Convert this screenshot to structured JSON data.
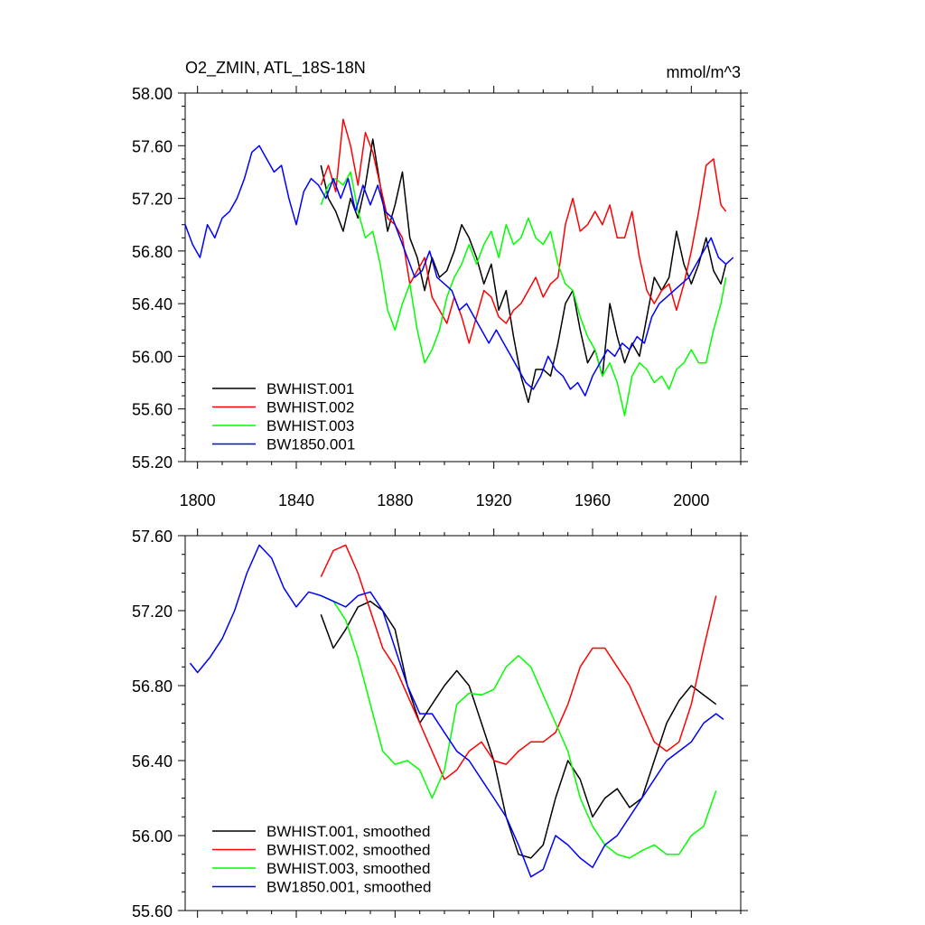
{
  "chart_data": [
    {
      "type": "line",
      "title": "O2_ZMIN, ATL_18S-18N",
      "units": "mmol/m^3",
      "xlabel": "",
      "ylabel": "",
      "xlim": [
        1795,
        2020
      ],
      "ylim": [
        55.2,
        58.0
      ],
      "xticks": [
        1800,
        1840,
        1880,
        1920,
        1960,
        2000
      ],
      "yticks": [
        55.2,
        55.6,
        56.0,
        56.4,
        56.8,
        57.2,
        57.6,
        58.0
      ],
      "ytick_labels": [
        "55.20",
        "55.60",
        "56.00",
        "56.40",
        "56.80",
        "57.20",
        "57.60",
        "58.00"
      ],
      "legend_position": "bottom-left",
      "series": [
        {
          "name": "BWHIST.001",
          "color": "#000000",
          "x": [
            1850,
            1853,
            1856,
            1859,
            1862,
            1865,
            1868,
            1871,
            1874,
            1877,
            1880,
            1883,
            1886,
            1889,
            1892,
            1895,
            1898,
            1901,
            1904,
            1907,
            1910,
            1913,
            1916,
            1919,
            1922,
            1925,
            1928,
            1931,
            1934,
            1937,
            1940,
            1943,
            1946,
            1949,
            1952,
            1955,
            1958,
            1961,
            1964,
            1967,
            1970,
            1973,
            1976,
            1979,
            1982,
            1985,
            1988,
            1991,
            1994,
            1997,
            2000,
            2003,
            2006,
            2009,
            2012,
            2014
          ],
          "y": [
            57.45,
            57.2,
            57.1,
            56.95,
            57.2,
            57.05,
            57.3,
            57.65,
            57.3,
            56.95,
            57.15,
            57.4,
            56.9,
            56.75,
            56.5,
            56.75,
            56.6,
            56.65,
            56.8,
            57.0,
            56.9,
            56.75,
            56.55,
            56.7,
            56.35,
            56.5,
            56.15,
            55.85,
            55.65,
            55.9,
            55.9,
            55.85,
            56.1,
            56.4,
            56.5,
            56.2,
            55.95,
            56.05,
            55.85,
            56.4,
            56.15,
            55.95,
            56.1,
            56.0,
            56.3,
            56.6,
            56.5,
            56.6,
            56.95,
            56.7,
            56.55,
            56.7,
            56.9,
            56.65,
            56.55,
            56.7
          ]
        },
        {
          "name": "BWHIST.002",
          "color": "#ff0000",
          "x": [
            1850,
            1853,
            1856,
            1859,
            1862,
            1865,
            1868,
            1871,
            1874,
            1877,
            1880,
            1883,
            1886,
            1889,
            1892,
            1895,
            1898,
            1901,
            1904,
            1907,
            1910,
            1913,
            1916,
            1919,
            1922,
            1925,
            1928,
            1931,
            1934,
            1937,
            1940,
            1943,
            1946,
            1949,
            1952,
            1955,
            1958,
            1961,
            1964,
            1967,
            1970,
            1973,
            1976,
            1979,
            1982,
            1985,
            1988,
            1991,
            1994,
            1997,
            2000,
            2003,
            2006,
            2009,
            2012,
            2014
          ],
          "y": [
            57.3,
            57.45,
            57.25,
            57.8,
            57.6,
            57.3,
            57.7,
            57.55,
            57.3,
            57.05,
            57.0,
            56.9,
            56.55,
            56.65,
            56.75,
            56.45,
            56.35,
            56.25,
            56.45,
            56.3,
            56.1,
            56.3,
            56.5,
            56.45,
            56.3,
            56.25,
            56.35,
            56.4,
            56.5,
            56.6,
            56.45,
            56.55,
            56.6,
            57.0,
            57.2,
            56.95,
            57.0,
            57.1,
            57.0,
            57.15,
            56.9,
            56.9,
            57.1,
            56.75,
            56.5,
            56.4,
            56.5,
            56.55,
            56.35,
            56.55,
            56.8,
            57.1,
            57.45,
            57.5,
            57.15,
            57.1
          ]
        },
        {
          "name": "BWHIST.003",
          "color": "#00ff00",
          "x": [
            1850,
            1853,
            1856,
            1859,
            1862,
            1865,
            1868,
            1871,
            1874,
            1877,
            1880,
            1883,
            1886,
            1889,
            1892,
            1895,
            1898,
            1901,
            1904,
            1907,
            1910,
            1913,
            1916,
            1919,
            1922,
            1925,
            1928,
            1931,
            1934,
            1937,
            1940,
            1943,
            1946,
            1949,
            1952,
            1955,
            1958,
            1961,
            1964,
            1967,
            1970,
            1973,
            1976,
            1979,
            1982,
            1985,
            1988,
            1991,
            1994,
            1997,
            2000,
            2003,
            2006,
            2009,
            2012,
            2014
          ],
          "y": [
            57.15,
            57.3,
            57.35,
            57.3,
            57.4,
            57.1,
            56.9,
            56.95,
            56.7,
            56.35,
            56.2,
            56.4,
            56.55,
            56.2,
            55.95,
            56.05,
            56.2,
            56.45,
            56.6,
            56.7,
            56.85,
            56.7,
            56.85,
            56.95,
            56.75,
            57.0,
            56.85,
            56.9,
            57.05,
            56.9,
            56.85,
            56.95,
            56.7,
            56.55,
            56.5,
            56.3,
            56.15,
            56.05,
            55.85,
            55.95,
            55.8,
            55.55,
            55.85,
            55.95,
            55.9,
            55.8,
            55.85,
            55.75,
            55.9,
            55.95,
            56.05,
            55.95,
            55.95,
            56.2,
            56.4,
            56.6
          ]
        },
        {
          "name": "BW1850.001",
          "color": "#0000ff",
          "x": [
            1795,
            1798,
            1801,
            1804,
            1807,
            1810,
            1813,
            1816,
            1819,
            1822,
            1825,
            1828,
            1831,
            1834,
            1837,
            1840,
            1843,
            1846,
            1849,
            1852,
            1855,
            1858,
            1861,
            1864,
            1867,
            1870,
            1873,
            1876,
            1879,
            1882,
            1885,
            1888,
            1891,
            1894,
            1897,
            1900,
            1903,
            1906,
            1909,
            1912,
            1915,
            1918,
            1921,
            1924,
            1927,
            1930,
            1933,
            1936,
            1939,
            1942,
            1945,
            1948,
            1951,
            1954,
            1957,
            1960,
            1963,
            1966,
            1969,
            1972,
            1975,
            1978,
            1981,
            1984,
            1987,
            1990,
            1993,
            1996,
            1999,
            2002,
            2005,
            2008,
            2011,
            2014,
            2017
          ],
          "y": [
            57.0,
            56.85,
            56.75,
            57.0,
            56.9,
            57.05,
            57.1,
            57.2,
            57.35,
            57.55,
            57.6,
            57.5,
            57.4,
            57.45,
            57.2,
            57.0,
            57.25,
            57.35,
            57.3,
            57.2,
            57.35,
            57.2,
            57.35,
            57.1,
            57.3,
            57.15,
            57.3,
            57.1,
            57.05,
            56.9,
            56.75,
            56.6,
            56.65,
            56.8,
            56.6,
            56.55,
            56.5,
            56.35,
            56.4,
            56.3,
            56.2,
            56.1,
            56.2,
            56.1,
            56.0,
            55.9,
            55.8,
            55.75,
            55.85,
            56.0,
            55.9,
            55.85,
            55.75,
            55.8,
            55.7,
            55.85,
            55.95,
            56.05,
            56.0,
            56.1,
            56.05,
            56.15,
            56.1,
            56.3,
            56.4,
            56.45,
            56.5,
            56.55,
            56.6,
            56.7,
            56.8,
            56.9,
            56.75,
            56.7,
            56.75
          ]
        }
      ]
    },
    {
      "type": "line",
      "title": "",
      "xlabel": "",
      "ylabel": "",
      "xlim": [
        1795,
        2020
      ],
      "ylim": [
        55.6,
        57.6
      ],
      "xticks": [
        1800,
        1840,
        1880,
        1920,
        1960,
        2000
      ],
      "yticks": [
        55.6,
        56.0,
        56.4,
        56.8,
        57.2,
        57.6
      ],
      "ytick_labels": [
        "55.60",
        "56.00",
        "56.40",
        "56.80",
        "57.20",
        "57.60"
      ],
      "legend_position": "bottom-left",
      "series": [
        {
          "name": "BWHIST.001, smoothed",
          "color": "#000000",
          "x": [
            1850,
            1855,
            1860,
            1865,
            1870,
            1875,
            1880,
            1885,
            1890,
            1895,
            1900,
            1905,
            1910,
            1915,
            1920,
            1925,
            1930,
            1935,
            1940,
            1945,
            1950,
            1955,
            1960,
            1965,
            1970,
            1975,
            1980,
            1985,
            1990,
            1995,
            2000,
            2005,
            2010
          ],
          "y": [
            57.18,
            57.0,
            57.1,
            57.22,
            57.25,
            57.2,
            57.1,
            56.8,
            56.6,
            56.7,
            56.8,
            56.88,
            56.8,
            56.6,
            56.4,
            56.1,
            55.9,
            55.88,
            55.95,
            56.2,
            56.4,
            56.3,
            56.1,
            56.2,
            56.25,
            56.15,
            56.2,
            56.4,
            56.6,
            56.72,
            56.8,
            56.75,
            56.7
          ]
        },
        {
          "name": "BWHIST.002, smoothed",
          "color": "#ff0000",
          "x": [
            1850,
            1855,
            1860,
            1865,
            1870,
            1875,
            1880,
            1885,
            1890,
            1895,
            1900,
            1905,
            1910,
            1915,
            1920,
            1925,
            1930,
            1935,
            1940,
            1945,
            1950,
            1955,
            1960,
            1965,
            1970,
            1975,
            1980,
            1985,
            1990,
            1995,
            2000,
            2005,
            2010
          ],
          "y": [
            57.38,
            57.52,
            57.55,
            57.4,
            57.2,
            57.0,
            56.9,
            56.75,
            56.6,
            56.45,
            56.3,
            56.35,
            56.45,
            56.5,
            56.4,
            56.38,
            56.45,
            56.5,
            56.5,
            56.55,
            56.7,
            56.9,
            57.0,
            57.0,
            56.9,
            56.8,
            56.65,
            56.5,
            56.45,
            56.5,
            56.7,
            57.0,
            57.28
          ]
        },
        {
          "name": "BWHIST.003, smoothed",
          "color": "#00ff00",
          "x": [
            1850,
            1855,
            1860,
            1865,
            1870,
            1875,
            1880,
            1885,
            1890,
            1895,
            1900,
            1905,
            1910,
            1915,
            1920,
            1925,
            1930,
            1935,
            1940,
            1945,
            1950,
            1955,
            1960,
            1965,
            1970,
            1975,
            1980,
            1985,
            1990,
            1995,
            2000,
            2005,
            2010
          ],
          "y": [
            57.28,
            57.25,
            57.15,
            56.95,
            56.7,
            56.45,
            56.38,
            56.4,
            56.35,
            56.2,
            56.35,
            56.7,
            56.76,
            56.75,
            56.78,
            56.9,
            56.96,
            56.9,
            56.75,
            56.6,
            56.45,
            56.2,
            56.05,
            55.95,
            55.9,
            55.88,
            55.92,
            55.95,
            55.9,
            55.9,
            56.0,
            56.05,
            56.24
          ]
        },
        {
          "name": "BW1850.001, smoothed",
          "color": "#0000ff",
          "x": [
            1797,
            1800,
            1805,
            1810,
            1815,
            1820,
            1825,
            1830,
            1835,
            1840,
            1845,
            1850,
            1855,
            1860,
            1865,
            1870,
            1875,
            1880,
            1885,
            1890,
            1895,
            1900,
            1905,
            1910,
            1915,
            1920,
            1925,
            1930,
            1935,
            1940,
            1945,
            1950,
            1955,
            1960,
            1965,
            1970,
            1975,
            1980,
            1985,
            1990,
            1995,
            2000,
            2005,
            2010,
            2013
          ],
          "y": [
            56.92,
            56.87,
            56.95,
            57.05,
            57.2,
            57.4,
            57.55,
            57.48,
            57.32,
            57.22,
            57.3,
            57.28,
            57.25,
            57.22,
            57.28,
            57.3,
            57.2,
            57.0,
            56.8,
            56.65,
            56.65,
            56.55,
            56.45,
            56.4,
            56.3,
            56.2,
            56.1,
            55.95,
            55.78,
            55.82,
            56.0,
            55.95,
            55.88,
            55.83,
            55.95,
            56.0,
            56.1,
            56.2,
            56.3,
            56.4,
            56.45,
            56.5,
            56.6,
            56.65,
            56.62
          ]
        }
      ]
    }
  ]
}
